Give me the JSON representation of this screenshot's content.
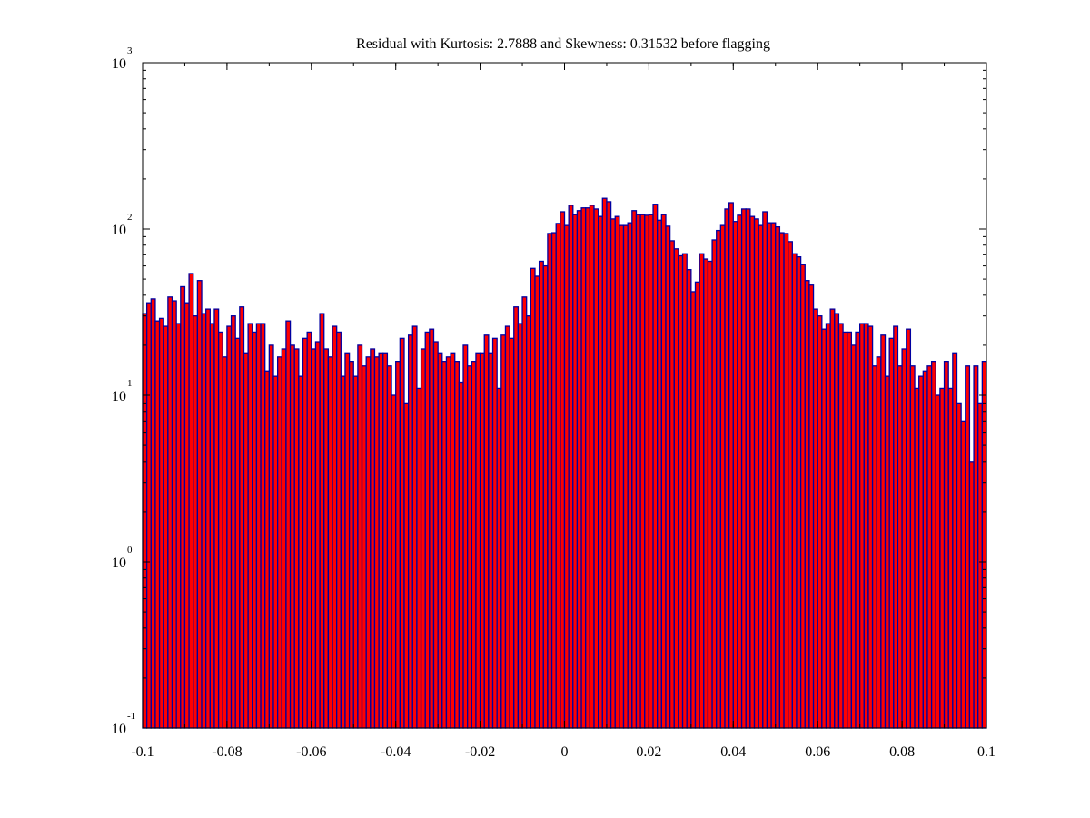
{
  "chart_data": {
    "type": "bar",
    "title": "Residual with Kurtosis: 2.7888 and Skewness: 0.31532 before flagging",
    "xlabel": "",
    "ylabel": "",
    "xlim": [
      -0.1,
      0.1
    ],
    "ylim": [
      0.1,
      1000
    ],
    "yscale": "log",
    "grid": false,
    "bin_count": 200,
    "x_ticks": [
      {
        "value": -0.1,
        "label": "-0.1"
      },
      {
        "value": -0.08,
        "label": "-0.08"
      },
      {
        "value": -0.06,
        "label": "-0.06"
      },
      {
        "value": -0.04,
        "label": "-0.04"
      },
      {
        "value": -0.02,
        "label": "-0.02"
      },
      {
        "value": 0,
        "label": "0"
      },
      {
        "value": 0.02,
        "label": "0.02"
      },
      {
        "value": 0.04,
        "label": "0.04"
      },
      {
        "value": 0.06,
        "label": "0.06"
      },
      {
        "value": 0.08,
        "label": "0.08"
      },
      {
        "value": 0.1,
        "label": "0.1"
      }
    ],
    "y_ticks": [
      {
        "value": 0.1,
        "base": "10",
        "exponent": "-1"
      },
      {
        "value": 1,
        "base": "10",
        "exponent": "0"
      },
      {
        "value": 10,
        "base": "10",
        "exponent": "1"
      },
      {
        "value": 100,
        "base": "10",
        "exponent": "2"
      },
      {
        "value": 1000,
        "base": "10",
        "exponent": "3"
      }
    ],
    "colors": {
      "bar_fill": "#ff0000",
      "bar_edge": "#0000a0",
      "axis": "#000000"
    },
    "values": [
      31,
      36,
      38,
      28,
      29,
      26,
      39,
      37,
      27,
      45,
      36,
      54,
      30,
      49,
      31,
      33,
      27,
      33,
      24,
      17,
      26,
      30,
      22,
      34,
      18,
      27,
      24,
      27,
      27,
      14,
      20,
      13,
      17,
      19,
      28,
      20,
      19,
      13,
      22,
      24,
      19,
      21,
      31,
      19,
      17,
      26,
      24,
      13,
      18,
      16,
      13,
      20,
      15,
      17,
      19,
      17,
      18,
      18,
      15,
      10,
      16,
      22,
      9,
      23,
      26,
      11,
      19,
      24,
      25,
      21,
      18,
      16,
      17,
      18,
      16,
      12,
      20,
      15,
      16,
      18,
      18,
      23,
      18,
      22,
      11,
      23,
      26,
      22,
      34,
      27,
      39,
      30,
      58,
      52,
      64,
      60,
      94,
      95,
      108,
      127,
      105,
      139,
      122,
      129,
      134,
      134,
      139,
      132,
      119,
      153,
      146,
      115,
      119,
      105,
      105,
      109,
      129,
      122,
      122,
      121,
      122,
      141,
      113,
      122,
      104,
      85,
      76,
      69,
      71,
      57,
      42,
      48,
      71,
      66,
      64,
      86,
      98,
      105,
      132,
      144,
      111,
      121,
      132,
      132,
      119,
      115,
      105,
      127,
      109,
      109,
      103,
      95,
      94,
      84,
      71,
      68,
      61,
      49,
      46,
      33,
      30,
      25,
      27,
      33,
      31,
      27,
      24,
      24,
      20,
      24,
      27,
      27,
      26,
      15,
      17,
      23,
      13,
      22,
      26,
      15,
      19,
      25,
      15,
      11,
      13,
      14,
      15,
      16,
      10,
      11,
      16,
      11,
      18,
      9,
      7,
      15,
      4,
      15,
      9,
      16
    ]
  }
}
